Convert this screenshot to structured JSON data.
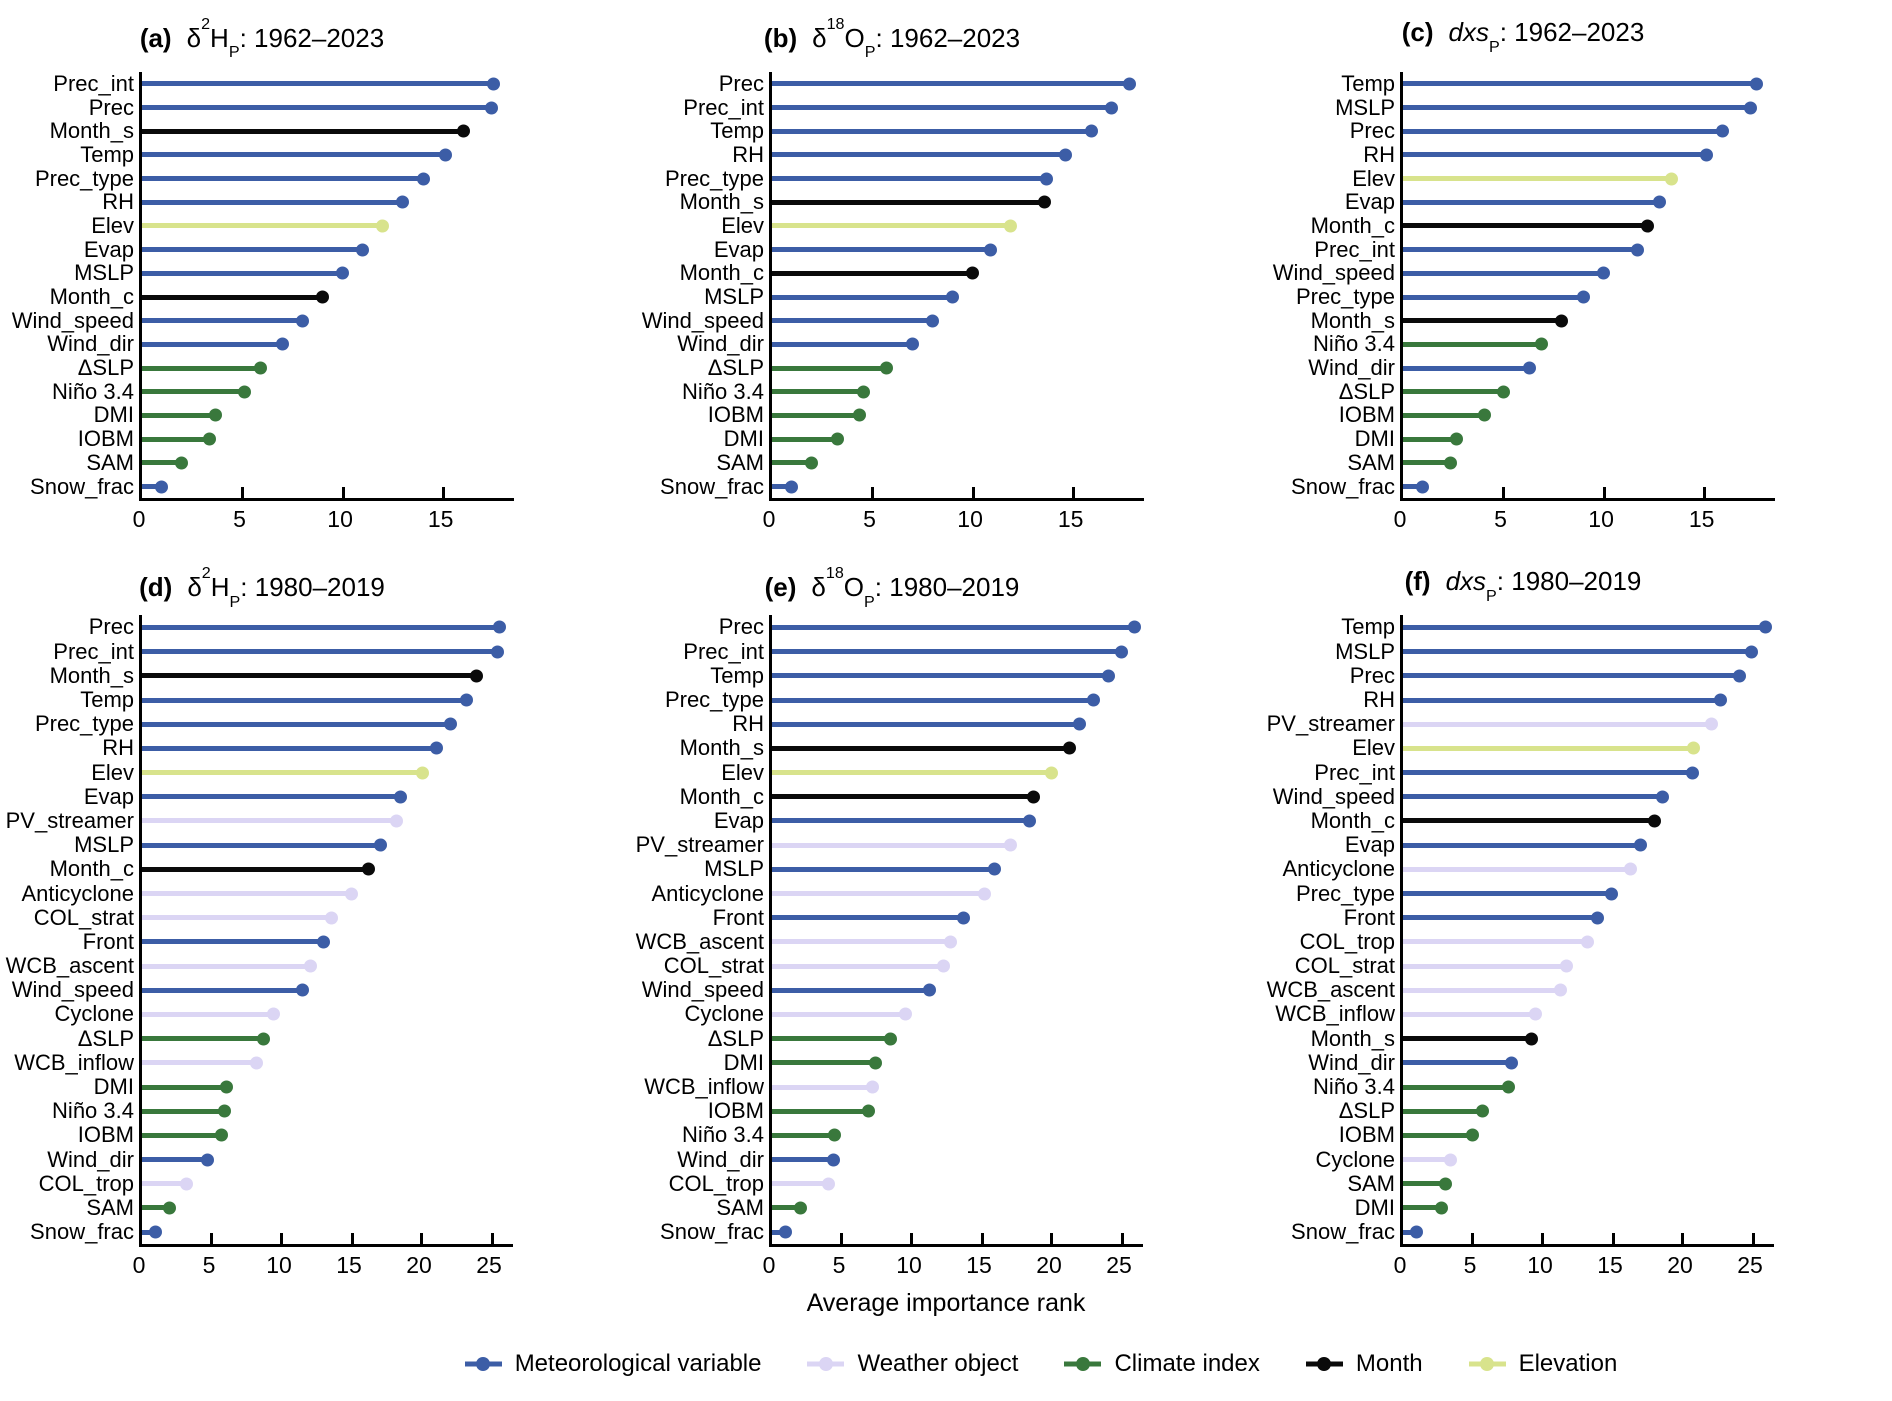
{
  "figure": {
    "xlabel": "Average importance rank",
    "background": "#ffffff",
    "axis_color": "#000000",
    "text_color": "#000000",
    "legend": {
      "position": "bottom-center",
      "items": [
        {
          "key": "met",
          "label": "Meteorological variable",
          "color": "#3C5DA6"
        },
        {
          "key": "weather",
          "label": "Weather object",
          "color": "#DBD5F4"
        },
        {
          "key": "climate",
          "label": "Climate index",
          "color": "#39783C"
        },
        {
          "key": "month",
          "label": "Month",
          "color": "#0A0A0A"
        },
        {
          "key": "elev",
          "label": "Elevation",
          "color": "#D8E38C"
        }
      ]
    }
  },
  "chart_data": [
    {
      "id": "a",
      "type": "bar",
      "subtype": "horizontal-lollipop",
      "letter": "(a)",
      "title_parts": [
        {
          "t": "δ"
        },
        {
          "t": "2",
          "s": "sup"
        },
        {
          "t": "H"
        },
        {
          "t": "P",
          "s": "sub"
        },
        {
          "t": ": 1962–2023"
        }
      ],
      "xlim": [
        0,
        18.5
      ],
      "xticks": [
        0,
        5,
        10,
        15
      ],
      "grid": false,
      "items": [
        {
          "label": "Prec_int",
          "value": 17.5,
          "category": "met"
        },
        {
          "label": "Prec",
          "value": 17.4,
          "category": "met"
        },
        {
          "label": "Month_s",
          "value": 16.0,
          "category": "month"
        },
        {
          "label": "Temp",
          "value": 15.1,
          "category": "met"
        },
        {
          "label": "Prec_type",
          "value": 14.0,
          "category": "met"
        },
        {
          "label": "RH",
          "value": 13.0,
          "category": "met"
        },
        {
          "label": "Elev",
          "value": 12.0,
          "category": "elev"
        },
        {
          "label": "Evap",
          "value": 11.0,
          "category": "met"
        },
        {
          "label": "MSLP",
          "value": 10.0,
          "category": "met"
        },
        {
          "label": "Month_c",
          "value": 9.0,
          "category": "month"
        },
        {
          "label": "Wind_speed",
          "value": 8.0,
          "category": "met"
        },
        {
          "label": "Wind_dir",
          "value": 7.0,
          "category": "met"
        },
        {
          "label": "ΔSLP",
          "value": 5.9,
          "category": "climate"
        },
        {
          "label": "Niño 3.4",
          "value": 5.1,
          "category": "climate"
        },
        {
          "label": "DMI",
          "value": 3.7,
          "category": "climate"
        },
        {
          "label": "IOBM",
          "value": 3.4,
          "category": "climate"
        },
        {
          "label": "SAM",
          "value": 2.0,
          "category": "climate"
        },
        {
          "label": "Snow_frac",
          "value": 1.0,
          "category": "met"
        }
      ]
    },
    {
      "id": "b",
      "type": "bar",
      "subtype": "horizontal-lollipop",
      "letter": "(b)",
      "title_parts": [
        {
          "t": "δ"
        },
        {
          "t": "18",
          "s": "sup"
        },
        {
          "t": "O"
        },
        {
          "t": "P",
          "s": "sub"
        },
        {
          "t": ": 1962–2023"
        }
      ],
      "xlim": [
        0,
        18.5
      ],
      "xticks": [
        0,
        5,
        10,
        15
      ],
      "grid": false,
      "items": [
        {
          "label": "Prec",
          "value": 17.8,
          "category": "met"
        },
        {
          "label": "Prec_int",
          "value": 16.9,
          "category": "met"
        },
        {
          "label": "Temp",
          "value": 15.9,
          "category": "met"
        },
        {
          "label": "RH",
          "value": 14.6,
          "category": "met"
        },
        {
          "label": "Prec_type",
          "value": 13.7,
          "category": "met"
        },
        {
          "label": "Month_s",
          "value": 13.6,
          "category": "month"
        },
        {
          "label": "Elev",
          "value": 11.9,
          "category": "elev"
        },
        {
          "label": "Evap",
          "value": 10.9,
          "category": "met"
        },
        {
          "label": "Month_c",
          "value": 10.0,
          "category": "month"
        },
        {
          "label": "MSLP",
          "value": 9.0,
          "category": "met"
        },
        {
          "label": "Wind_speed",
          "value": 8.0,
          "category": "met"
        },
        {
          "label": "Wind_dir",
          "value": 7.0,
          "category": "met"
        },
        {
          "label": "ΔSLP",
          "value": 5.7,
          "category": "climate"
        },
        {
          "label": "Niño 3.4",
          "value": 4.6,
          "category": "climate"
        },
        {
          "label": "IOBM",
          "value": 4.4,
          "category": "climate"
        },
        {
          "label": "DMI",
          "value": 3.3,
          "category": "climate"
        },
        {
          "label": "SAM",
          "value": 2.0,
          "category": "climate"
        },
        {
          "label": "Snow_frac",
          "value": 1.0,
          "category": "met"
        }
      ]
    },
    {
      "id": "c",
      "type": "bar",
      "subtype": "horizontal-lollipop",
      "letter": "(c)",
      "title_parts": [
        {
          "t": "dxs",
          "s": "i"
        },
        {
          "t": "P",
          "s": "sub"
        },
        {
          "t": ": 1962–2023"
        }
      ],
      "xlim": [
        0,
        18.5
      ],
      "xticks": [
        0,
        5,
        10,
        15
      ],
      "grid": false,
      "items": [
        {
          "label": "Temp",
          "value": 17.6,
          "category": "met"
        },
        {
          "label": "MSLP",
          "value": 17.3,
          "category": "met"
        },
        {
          "label": "Prec",
          "value": 15.9,
          "category": "met"
        },
        {
          "label": "RH",
          "value": 15.1,
          "category": "met"
        },
        {
          "label": "Elev",
          "value": 13.4,
          "category": "elev"
        },
        {
          "label": "Evap",
          "value": 12.8,
          "category": "met"
        },
        {
          "label": "Month_c",
          "value": 12.2,
          "category": "month"
        },
        {
          "label": "Prec_int",
          "value": 11.7,
          "category": "met"
        },
        {
          "label": "Wind_speed",
          "value": 10.0,
          "category": "met"
        },
        {
          "label": "Prec_type",
          "value": 9.0,
          "category": "met"
        },
        {
          "label": "Month_s",
          "value": 7.9,
          "category": "month"
        },
        {
          "label": "Niño 3.4",
          "value": 6.9,
          "category": "climate"
        },
        {
          "label": "Wind_dir",
          "value": 6.3,
          "category": "met"
        },
        {
          "label": "ΔSLP",
          "value": 5.0,
          "category": "climate"
        },
        {
          "label": "IOBM",
          "value": 4.1,
          "category": "climate"
        },
        {
          "label": "DMI",
          "value": 2.7,
          "category": "climate"
        },
        {
          "label": "SAM",
          "value": 2.4,
          "category": "climate"
        },
        {
          "label": "Snow_frac",
          "value": 1.0,
          "category": "met"
        }
      ]
    },
    {
      "id": "d",
      "type": "bar",
      "subtype": "horizontal-lollipop",
      "letter": "(d)",
      "title_parts": [
        {
          "t": "δ"
        },
        {
          "t": "2",
          "s": "sup"
        },
        {
          "t": "H"
        },
        {
          "t": "P",
          "s": "sub"
        },
        {
          "t": ": 1980–2019"
        }
      ],
      "xlim": [
        0,
        26.5
      ],
      "xticks": [
        0,
        5,
        10,
        15,
        20,
        25
      ],
      "grid": false,
      "items": [
        {
          "label": "Prec",
          "value": 25.6,
          "category": "met"
        },
        {
          "label": "Prec_int",
          "value": 25.4,
          "category": "met"
        },
        {
          "label": "Month_s",
          "value": 23.9,
          "category": "month"
        },
        {
          "label": "Temp",
          "value": 23.2,
          "category": "met"
        },
        {
          "label": "Prec_type",
          "value": 22.1,
          "category": "met"
        },
        {
          "label": "RH",
          "value": 21.1,
          "category": "met"
        },
        {
          "label": "Elev",
          "value": 20.1,
          "category": "elev"
        },
        {
          "label": "Evap",
          "value": 18.5,
          "category": "met"
        },
        {
          "label": "PV_streamer",
          "value": 18.2,
          "category": "weather"
        },
        {
          "label": "MSLP",
          "value": 17.1,
          "category": "met"
        },
        {
          "label": "Month_c",
          "value": 16.2,
          "category": "month"
        },
        {
          "label": "Anticyclone",
          "value": 15.0,
          "category": "weather"
        },
        {
          "label": "COL_strat",
          "value": 13.6,
          "category": "weather"
        },
        {
          "label": "Front",
          "value": 13.0,
          "category": "met"
        },
        {
          "label": "WCB_ascent",
          "value": 12.1,
          "category": "weather"
        },
        {
          "label": "Wind_speed",
          "value": 11.5,
          "category": "met"
        },
        {
          "label": "Cyclone",
          "value": 9.4,
          "category": "weather"
        },
        {
          "label": "ΔSLP",
          "value": 8.7,
          "category": "climate"
        },
        {
          "label": "WCB_inflow",
          "value": 8.2,
          "category": "weather"
        },
        {
          "label": "DMI",
          "value": 6.1,
          "category": "climate"
        },
        {
          "label": "Niño 3.4",
          "value": 5.9,
          "category": "climate"
        },
        {
          "label": "IOBM",
          "value": 5.7,
          "category": "climate"
        },
        {
          "label": "Wind_dir",
          "value": 4.7,
          "category": "met"
        },
        {
          "label": "COL_trop",
          "value": 3.2,
          "category": "weather"
        },
        {
          "label": "SAM",
          "value": 2.0,
          "category": "climate"
        },
        {
          "label": "Snow_frac",
          "value": 1.0,
          "category": "met"
        }
      ]
    },
    {
      "id": "e",
      "type": "bar",
      "subtype": "horizontal-lollipop",
      "letter": "(e)",
      "title_parts": [
        {
          "t": "δ"
        },
        {
          "t": "18",
          "s": "sup"
        },
        {
          "t": "O"
        },
        {
          "t": "P",
          "s": "sub"
        },
        {
          "t": ": 1980–2019"
        }
      ],
      "xlim": [
        0,
        26.5
      ],
      "xticks": [
        0,
        5,
        10,
        15,
        20,
        25
      ],
      "grid": false,
      "items": [
        {
          "label": "Prec",
          "value": 25.9,
          "category": "met"
        },
        {
          "label": "Prec_int",
          "value": 25.0,
          "category": "met"
        },
        {
          "label": "Temp",
          "value": 24.1,
          "category": "met"
        },
        {
          "label": "Prec_type",
          "value": 23.0,
          "category": "met"
        },
        {
          "label": "RH",
          "value": 22.0,
          "category": "met"
        },
        {
          "label": "Month_s",
          "value": 21.3,
          "category": "month"
        },
        {
          "label": "Elev",
          "value": 20.0,
          "category": "elev"
        },
        {
          "label": "Month_c",
          "value": 18.7,
          "category": "month"
        },
        {
          "label": "Evap",
          "value": 18.4,
          "category": "met"
        },
        {
          "label": "PV_streamer",
          "value": 17.1,
          "category": "weather"
        },
        {
          "label": "MSLP",
          "value": 15.9,
          "category": "met"
        },
        {
          "label": "Anticyclone",
          "value": 15.2,
          "category": "weather"
        },
        {
          "label": "Front",
          "value": 13.7,
          "category": "met"
        },
        {
          "label": "WCB_ascent",
          "value": 12.8,
          "category": "weather"
        },
        {
          "label": "COL_strat",
          "value": 12.3,
          "category": "weather"
        },
        {
          "label": "Wind_speed",
          "value": 11.3,
          "category": "met"
        },
        {
          "label": "Cyclone",
          "value": 9.6,
          "category": "weather"
        },
        {
          "label": "ΔSLP",
          "value": 8.5,
          "category": "climate"
        },
        {
          "label": "DMI",
          "value": 7.4,
          "category": "climate"
        },
        {
          "label": "WCB_inflow",
          "value": 7.2,
          "category": "weather"
        },
        {
          "label": "IOBM",
          "value": 6.9,
          "category": "climate"
        },
        {
          "label": "Niño 3.4",
          "value": 4.5,
          "category": "climate"
        },
        {
          "label": "Wind_dir",
          "value": 4.4,
          "category": "met"
        },
        {
          "label": "COL_trop",
          "value": 4.1,
          "category": "weather"
        },
        {
          "label": "SAM",
          "value": 2.1,
          "category": "climate"
        },
        {
          "label": "Snow_frac",
          "value": 1.0,
          "category": "met"
        }
      ]
    },
    {
      "id": "f",
      "type": "bar",
      "subtype": "horizontal-lollipop",
      "letter": "(f)",
      "title_parts": [
        {
          "t": "dxs",
          "s": "i"
        },
        {
          "t": "P",
          "s": "sub"
        },
        {
          "t": ": 1980–2019"
        }
      ],
      "xlim": [
        0,
        26.5
      ],
      "xticks": [
        0,
        5,
        10,
        15,
        20,
        25
      ],
      "grid": false,
      "items": [
        {
          "label": "Temp",
          "value": 25.9,
          "category": "met"
        },
        {
          "label": "MSLP",
          "value": 24.9,
          "category": "met"
        },
        {
          "label": "Prec",
          "value": 24.1,
          "category": "met"
        },
        {
          "label": "RH",
          "value": 22.7,
          "category": "met"
        },
        {
          "label": "PV_streamer",
          "value": 22.1,
          "category": "weather"
        },
        {
          "label": "Elev",
          "value": 20.8,
          "category": "elev"
        },
        {
          "label": "Prec_int",
          "value": 20.7,
          "category": "met"
        },
        {
          "label": "Wind_speed",
          "value": 18.6,
          "category": "met"
        },
        {
          "label": "Month_c",
          "value": 18.0,
          "category": "month"
        },
        {
          "label": "Evap",
          "value": 17.0,
          "category": "met"
        },
        {
          "label": "Anticyclone",
          "value": 16.3,
          "category": "weather"
        },
        {
          "label": "Prec_type",
          "value": 14.9,
          "category": "met"
        },
        {
          "label": "Front",
          "value": 13.9,
          "category": "met"
        },
        {
          "label": "COL_trop",
          "value": 13.2,
          "category": "weather"
        },
        {
          "label": "COL_strat",
          "value": 11.7,
          "category": "weather"
        },
        {
          "label": "WCB_ascent",
          "value": 11.3,
          "category": "weather"
        },
        {
          "label": "WCB_inflow",
          "value": 9.5,
          "category": "weather"
        },
        {
          "label": "Month_s",
          "value": 9.2,
          "category": "month"
        },
        {
          "label": "Wind_dir",
          "value": 7.8,
          "category": "met"
        },
        {
          "label": "Niño 3.4",
          "value": 7.6,
          "category": "climate"
        },
        {
          "label": "ΔSLP",
          "value": 5.7,
          "category": "climate"
        },
        {
          "label": "IOBM",
          "value": 5.0,
          "category": "climate"
        },
        {
          "label": "Cyclone",
          "value": 3.4,
          "category": "weather"
        },
        {
          "label": "SAM",
          "value": 3.1,
          "category": "climate"
        },
        {
          "label": "DMI",
          "value": 2.8,
          "category": "climate"
        },
        {
          "label": "Snow_frac",
          "value": 1.0,
          "category": "met"
        }
      ]
    }
  ]
}
